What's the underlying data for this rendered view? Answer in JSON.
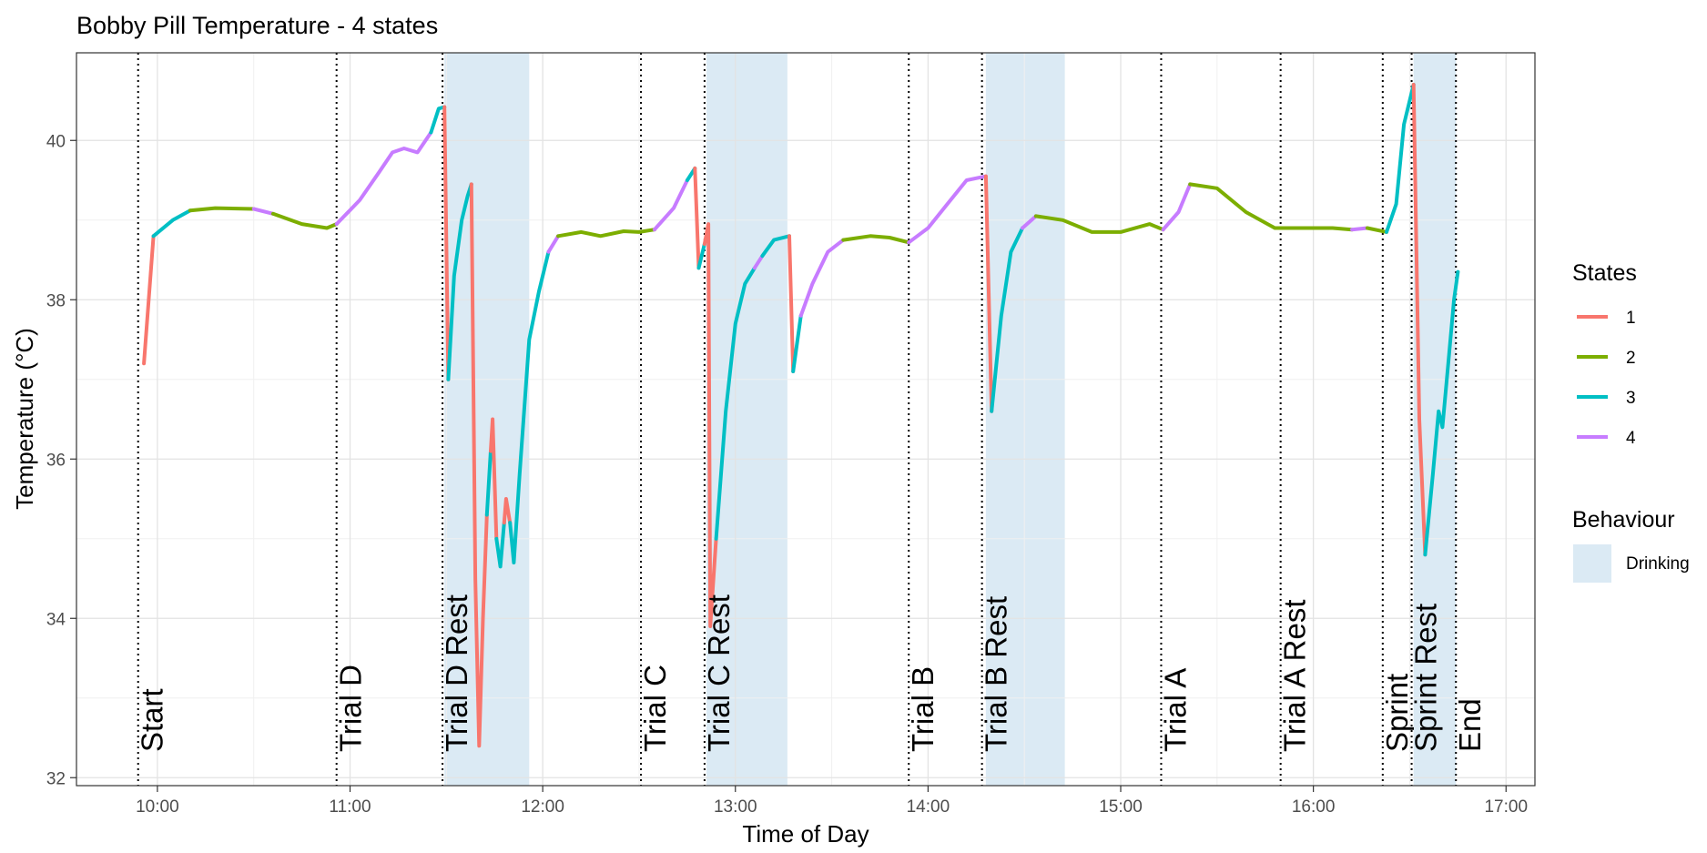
{
  "chart_data": {
    "type": "line",
    "title": "Bobby Pill Temperature - 4 states",
    "xlabel": "Time of Day",
    "ylabel": "Temperature (°C)",
    "xlim": [
      9.58,
      17.15
    ],
    "ylim": [
      31.9,
      41.1
    ],
    "x_ticks": [
      {
        "value": 10,
        "label": "10:00"
      },
      {
        "value": 11,
        "label": "11:00"
      },
      {
        "value": 12,
        "label": "12:00"
      },
      {
        "value": 13,
        "label": "13:00"
      },
      {
        "value": 14,
        "label": "14:00"
      },
      {
        "value": 15,
        "label": "15:00"
      },
      {
        "value": 16,
        "label": "16:00"
      },
      {
        "value": 17,
        "label": "17:00"
      }
    ],
    "y_ticks": [
      32,
      34,
      36,
      38,
      40
    ],
    "grid": true,
    "legend_placement": "right",
    "legend": {
      "states_title": "States",
      "states": [
        {
          "name": "1",
          "color": "#F8766D"
        },
        {
          "name": "2",
          "color": "#7CAE00"
        },
        {
          "name": "3",
          "color": "#00BFC4"
        },
        {
          "name": "4",
          "color": "#C77CFF"
        }
      ],
      "behaviour_title": "Behaviour",
      "behaviour": [
        {
          "name": "Drinking",
          "color": "#dbeaf4"
        }
      ]
    },
    "drinking_periods": [
      [
        11.49,
        11.93
      ],
      [
        12.85,
        13.27
      ],
      [
        14.3,
        14.71
      ],
      [
        16.52,
        16.74
      ]
    ],
    "events": [
      {
        "x": 9.9,
        "label": "Start"
      },
      {
        "x": 10.93,
        "label": "Trial D"
      },
      {
        "x": 11.48,
        "label": "Trial D Rest"
      },
      {
        "x": 12.51,
        "label": "Trial C"
      },
      {
        "x": 12.84,
        "label": "Trial C Rest"
      },
      {
        "x": 13.9,
        "label": "Trial B"
      },
      {
        "x": 14.28,
        "label": "Trial B Rest"
      },
      {
        "x": 15.21,
        "label": "Trial A"
      },
      {
        "x": 15.83,
        "label": "Trial A Rest"
      },
      {
        "x": 16.36,
        "label": "Sprint"
      },
      {
        "x": 16.51,
        "label": "Sprint Rest"
      },
      {
        "x": 16.74,
        "label": "End"
      }
    ],
    "segments": [
      {
        "state": "1",
        "points": [
          [
            9.93,
            37.2
          ],
          [
            9.98,
            38.8
          ]
        ]
      },
      {
        "state": "3",
        "points": [
          [
            9.98,
            38.8
          ],
          [
            10.08,
            39.0
          ],
          [
            10.17,
            39.12
          ]
        ]
      },
      {
        "state": "2",
        "points": [
          [
            10.17,
            39.12
          ],
          [
            10.3,
            39.15
          ],
          [
            10.5,
            39.14
          ]
        ]
      },
      {
        "state": "4",
        "points": [
          [
            10.5,
            39.14
          ],
          [
            10.6,
            39.08
          ]
        ]
      },
      {
        "state": "2",
        "points": [
          [
            10.6,
            39.08
          ],
          [
            10.75,
            38.95
          ],
          [
            10.88,
            38.9
          ],
          [
            10.93,
            38.95
          ]
        ]
      },
      {
        "state": "4",
        "points": [
          [
            10.93,
            38.95
          ],
          [
            11.05,
            39.25
          ],
          [
            11.15,
            39.6
          ],
          [
            11.22,
            39.85
          ],
          [
            11.28,
            39.9
          ],
          [
            11.35,
            39.85
          ],
          [
            11.42,
            40.1
          ]
        ]
      },
      {
        "state": "3",
        "points": [
          [
            11.42,
            40.1
          ],
          [
            11.46,
            40.4
          ],
          [
            11.49,
            40.42
          ]
        ]
      },
      {
        "state": "1",
        "points": [
          [
            11.49,
            40.42
          ],
          [
            11.51,
            37.0
          ]
        ]
      },
      {
        "state": "3",
        "points": [
          [
            11.51,
            37.0
          ],
          [
            11.54,
            38.3
          ],
          [
            11.58,
            39.0
          ],
          [
            11.61,
            39.3
          ],
          [
            11.63,
            39.45
          ]
        ]
      },
      {
        "state": "1",
        "points": [
          [
            11.63,
            39.45
          ],
          [
            11.65,
            34.5
          ],
          [
            11.67,
            32.4
          ],
          [
            11.69,
            34.0
          ],
          [
            11.71,
            35.3
          ]
        ]
      },
      {
        "state": "3",
        "points": [
          [
            11.71,
            35.3
          ],
          [
            11.73,
            36.1
          ]
        ]
      },
      {
        "state": "1",
        "points": [
          [
            11.73,
            36.1
          ],
          [
            11.74,
            36.5
          ],
          [
            11.76,
            35.0
          ]
        ]
      },
      {
        "state": "3",
        "points": [
          [
            11.76,
            35.0
          ],
          [
            11.78,
            34.65
          ],
          [
            11.8,
            35.2
          ]
        ]
      },
      {
        "state": "1",
        "points": [
          [
            11.8,
            35.2
          ],
          [
            11.81,
            35.5
          ],
          [
            11.83,
            35.2
          ]
        ]
      },
      {
        "state": "3",
        "points": [
          [
            11.83,
            35.2
          ],
          [
            11.85,
            34.7
          ],
          [
            11.88,
            35.8
          ],
          [
            11.93,
            37.5
          ],
          [
            11.98,
            38.1
          ],
          [
            12.03,
            38.6
          ]
        ]
      },
      {
        "state": "4",
        "points": [
          [
            12.03,
            38.6
          ],
          [
            12.08,
            38.8
          ]
        ]
      },
      {
        "state": "2",
        "points": [
          [
            12.08,
            38.8
          ],
          [
            12.2,
            38.85
          ],
          [
            12.3,
            38.8
          ],
          [
            12.42,
            38.86
          ],
          [
            12.5,
            38.85
          ],
          [
            12.58,
            38.88
          ]
        ]
      },
      {
        "state": "4",
        "points": [
          [
            12.58,
            38.88
          ],
          [
            12.68,
            39.15
          ],
          [
            12.75,
            39.5
          ]
        ]
      },
      {
        "state": "3",
        "points": [
          [
            12.75,
            39.5
          ],
          [
            12.79,
            39.65
          ]
        ]
      },
      {
        "state": "1",
        "points": [
          [
            12.79,
            39.65
          ],
          [
            12.81,
            38.4
          ]
        ]
      },
      {
        "state": "3",
        "points": [
          [
            12.81,
            38.4
          ],
          [
            12.84,
            38.7
          ]
        ]
      },
      {
        "state": "1",
        "points": [
          [
            12.84,
            38.7
          ],
          [
            12.86,
            38.95
          ],
          [
            12.87,
            33.9
          ],
          [
            12.9,
            35.0
          ]
        ]
      },
      {
        "state": "3",
        "points": [
          [
            12.9,
            35.0
          ],
          [
            12.95,
            36.6
          ],
          [
            13.0,
            37.7
          ],
          [
            13.05,
            38.2
          ],
          [
            13.1,
            38.4
          ]
        ]
      },
      {
        "state": "4",
        "points": [
          [
            13.1,
            38.4
          ],
          [
            13.14,
            38.55
          ]
        ]
      },
      {
        "state": "3",
        "points": [
          [
            13.14,
            38.55
          ],
          [
            13.2,
            38.75
          ],
          [
            13.28,
            38.8
          ]
        ]
      },
      {
        "state": "1",
        "points": [
          [
            13.28,
            38.8
          ],
          [
            13.3,
            37.1
          ]
        ]
      },
      {
        "state": "3",
        "points": [
          [
            13.3,
            37.1
          ],
          [
            13.34,
            37.8
          ]
        ]
      },
      {
        "state": "4",
        "points": [
          [
            13.34,
            37.8
          ],
          [
            13.4,
            38.2
          ],
          [
            13.48,
            38.6
          ],
          [
            13.56,
            38.75
          ]
        ]
      },
      {
        "state": "2",
        "points": [
          [
            13.56,
            38.75
          ],
          [
            13.7,
            38.8
          ],
          [
            13.8,
            38.78
          ],
          [
            13.9,
            38.72
          ]
        ]
      },
      {
        "state": "4",
        "points": [
          [
            13.9,
            38.72
          ],
          [
            14.0,
            38.9
          ],
          [
            14.1,
            39.2
          ],
          [
            14.2,
            39.5
          ],
          [
            14.3,
            39.55
          ]
        ]
      },
      {
        "state": "1",
        "points": [
          [
            14.3,
            39.55
          ],
          [
            14.33,
            36.6
          ]
        ]
      },
      {
        "state": "3",
        "points": [
          [
            14.33,
            36.6
          ],
          [
            14.38,
            37.8
          ],
          [
            14.43,
            38.6
          ],
          [
            14.49,
            38.9
          ]
        ]
      },
      {
        "state": "4",
        "points": [
          [
            14.49,
            38.9
          ],
          [
            14.56,
            39.05
          ]
        ]
      },
      {
        "state": "2",
        "points": [
          [
            14.56,
            39.05
          ],
          [
            14.7,
            39.0
          ],
          [
            14.85,
            38.85
          ],
          [
            15.0,
            38.85
          ],
          [
            15.15,
            38.95
          ],
          [
            15.22,
            38.88
          ]
        ]
      },
      {
        "state": "4",
        "points": [
          [
            15.22,
            38.88
          ],
          [
            15.3,
            39.1
          ],
          [
            15.36,
            39.45
          ]
        ]
      },
      {
        "state": "2",
        "points": [
          [
            15.36,
            39.45
          ],
          [
            15.5,
            39.4
          ],
          [
            15.65,
            39.1
          ],
          [
            15.8,
            38.9
          ],
          [
            15.95,
            38.9
          ],
          [
            16.1,
            38.9
          ],
          [
            16.2,
            38.88
          ]
        ]
      },
      {
        "state": "4",
        "points": [
          [
            16.2,
            38.88
          ],
          [
            16.28,
            38.9
          ]
        ]
      },
      {
        "state": "2",
        "points": [
          [
            16.28,
            38.9
          ],
          [
            16.38,
            38.85
          ]
        ]
      },
      {
        "state": "3",
        "points": [
          [
            16.38,
            38.85
          ],
          [
            16.43,
            39.2
          ],
          [
            16.47,
            40.2
          ],
          [
            16.52,
            40.7
          ]
        ]
      },
      {
        "state": "1",
        "points": [
          [
            16.52,
            40.7
          ],
          [
            16.55,
            36.5
          ],
          [
            16.58,
            34.8
          ]
        ]
      },
      {
        "state": "3",
        "points": [
          [
            16.58,
            34.8
          ],
          [
            16.62,
            35.8
          ],
          [
            16.65,
            36.6
          ],
          [
            16.67,
            36.4
          ],
          [
            16.7,
            37.2
          ],
          [
            16.73,
            38.0
          ],
          [
            16.75,
            38.35
          ]
        ]
      }
    ]
  }
}
